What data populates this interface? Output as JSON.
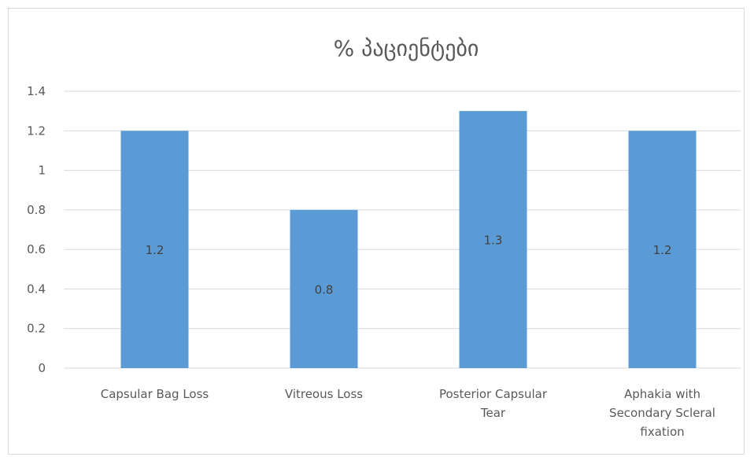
{
  "chart_data": {
    "type": "bar",
    "title": "% პაციენტები",
    "categories": [
      [
        "Capsular Bag Loss"
      ],
      [
        "Vitreous Loss"
      ],
      [
        "Posterior Capsular",
        "Tear"
      ],
      [
        "Aphakia with",
        "Secondary Scleral",
        "fixation"
      ]
    ],
    "values": [
      1.2,
      0.8,
      1.3,
      1.2
    ],
    "data_labels": [
      "1.2",
      "0.8",
      "1.3",
      "1.2"
    ],
    "ylim": [
      0,
      1.4
    ],
    "yticks": [
      "0",
      "0.2",
      "0.4",
      "0.6",
      "0.8",
      "1",
      "1.2",
      "1.4"
    ],
    "grid": true,
    "legend": "none",
    "colors": {
      "bar": "#5b9bd5",
      "grid": "#d9d9d9",
      "text": "#595959"
    }
  }
}
